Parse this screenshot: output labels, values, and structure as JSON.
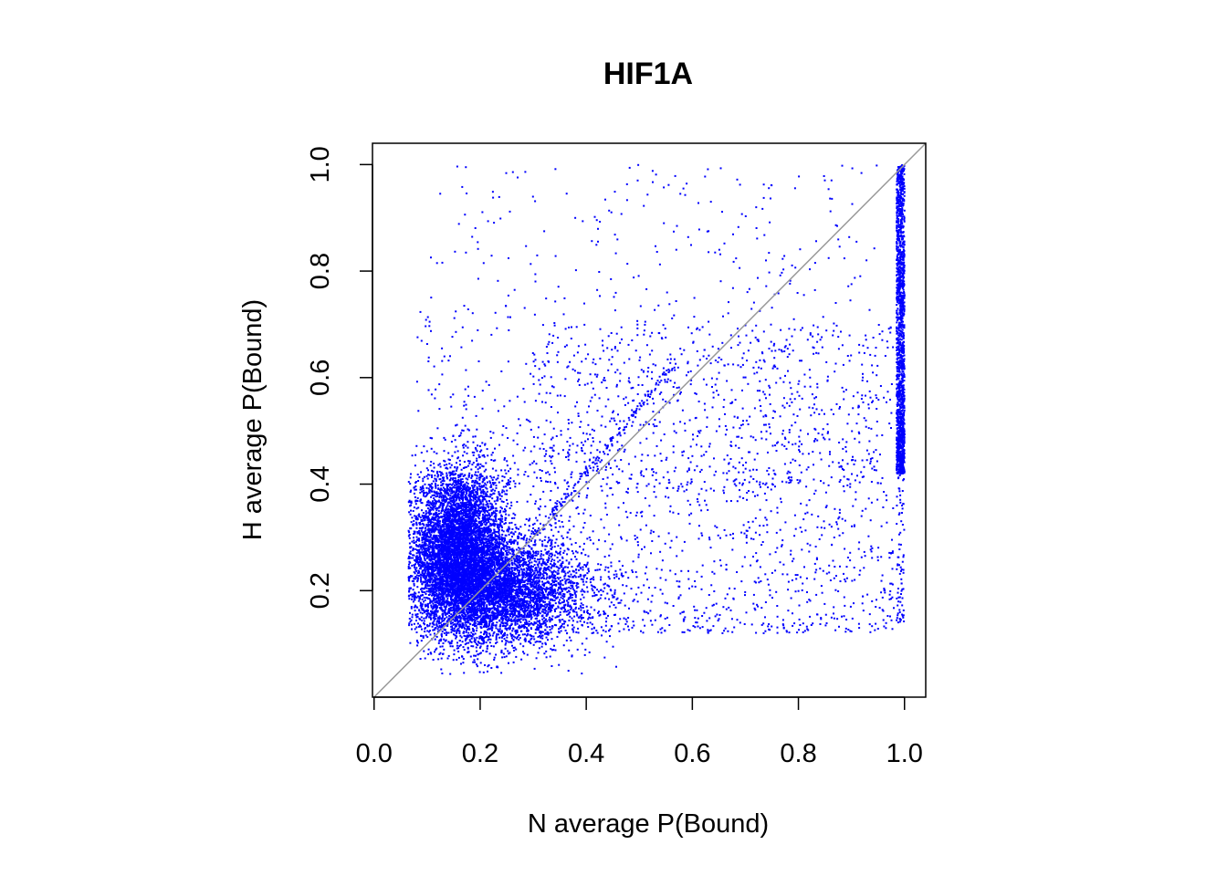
{
  "chart_data": {
    "type": "scatter",
    "title": "HIF1A",
    "xlabel": "N average P(Bound)",
    "ylabel": "H average P(Bound)",
    "xlim": [
      -0.003,
      1.04
    ],
    "ylim": [
      0.0,
      1.04
    ],
    "xticks": [
      "0.0",
      "0.2",
      "0.4",
      "0.6",
      "0.8",
      "1.0"
    ],
    "yticks": [
      "0.2",
      "0.4",
      "0.6",
      "0.8",
      "1.0"
    ],
    "grid": false,
    "legend": "none",
    "point_color": "#0000FF",
    "reference_line": {
      "type": "y = x",
      "color": "#999999"
    },
    "point_density": [
      {
        "region": "main cluster",
        "center": [
          0.16,
          0.28
        ],
        "sd": [
          0.045,
          0.075
        ],
        "n": 6000
      },
      {
        "region": "lower cluster",
        "center": [
          0.24,
          0.2
        ],
        "sd": [
          0.08,
          0.05
        ],
        "n": 4500
      },
      {
        "region": "diffuse middle",
        "x_range": [
          0.3,
          0.98
        ],
        "y_range": [
          0.12,
          0.7
        ],
        "n": 1500
      },
      {
        "region": "sparse upper",
        "x_range": [
          0.08,
          0.95
        ],
        "y_range": [
          0.4,
          1.0
        ],
        "n": 700
      },
      {
        "region": "x = 1 band",
        "x_range": [
          0.985,
          1.0
        ],
        "y_range": [
          0.42,
          1.0
        ],
        "n": 1600
      },
      {
        "region": "x = 1 tail",
        "x_range": [
          0.985,
          1.0
        ],
        "y_range": [
          0.14,
          0.42
        ],
        "n": 80
      },
      {
        "region": "diagonal streak",
        "from": [
          0.3,
          0.3
        ],
        "to": [
          0.57,
          0.63
        ],
        "n": 180
      }
    ]
  }
}
